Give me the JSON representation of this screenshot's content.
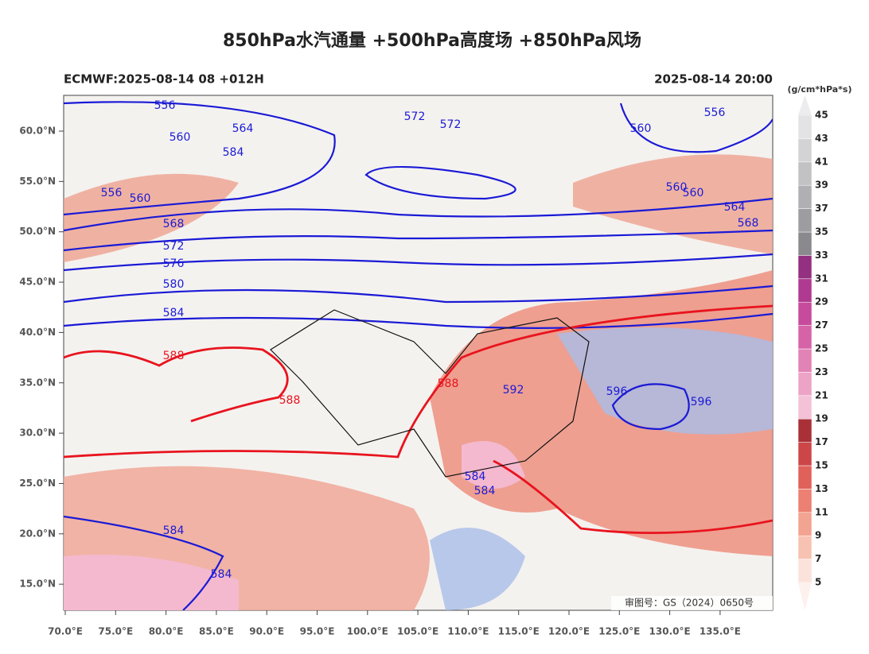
{
  "title": "850hPa水汽通量 +500hPa高度场 +850hPa风场",
  "subtitle_left": "ECMWF:2025-08-14 08 +012H",
  "subtitle_right": "2025-08-14 20:00",
  "colorbar": {
    "unit": "(g/cm*hPa*s)",
    "levels": [
      5,
      7,
      9,
      11,
      13,
      15,
      17,
      19,
      21,
      23,
      25,
      27,
      29,
      31,
      33,
      35,
      37,
      39,
      41,
      43,
      45
    ],
    "colors": [
      "#fbe3dc",
      "#f7c2b2",
      "#f3a391",
      "#ec8072",
      "#e0605a",
      "#cc4648",
      "#aa3038",
      "#f3c2d6",
      "#eca3c5",
      "#e283b6",
      "#d663a8",
      "#c64b9c",
      "#b03a90",
      "#93307f",
      "#8a8a8e",
      "#9d9da1",
      "#b0b0b4",
      "#c2c2c5",
      "#d3d3d6",
      "#e3e3e5"
    ]
  },
  "lon_ticks": [
    {
      "value": 70,
      "label": "70.0°E"
    },
    {
      "value": 75,
      "label": "75.0°E"
    },
    {
      "value": 80,
      "label": "80.0°E"
    },
    {
      "value": 85,
      "label": "85.0°E"
    },
    {
      "value": 90,
      "label": "90.0°E"
    },
    {
      "value": 95,
      "label": "95.0°E"
    },
    {
      "value": 100,
      "label": "100.0°E"
    },
    {
      "value": 105,
      "label": "105.0°E"
    },
    {
      "value": 110,
      "label": "110.0°E"
    },
    {
      "value": 115,
      "label": "115.0°E"
    },
    {
      "value": 120,
      "label": "120.0°E"
    },
    {
      "value": 125,
      "label": "125.0°E"
    },
    {
      "value": 130,
      "label": "130.0°E"
    },
    {
      "value": 135,
      "label": "135.0°E"
    }
  ],
  "lat_ticks": [
    {
      "value": 60,
      "label": "60.0°N"
    },
    {
      "value": 55,
      "label": "55.0°N"
    },
    {
      "value": 50,
      "label": "50.0°N"
    },
    {
      "value": 45,
      "label": "45.0°N"
    },
    {
      "value": 40,
      "label": "40.0°N"
    },
    {
      "value": 35,
      "label": "35.0°N"
    },
    {
      "value": 30,
      "label": "30.0°N"
    },
    {
      "value": 25,
      "label": "25.0°N"
    },
    {
      "value": 20,
      "label": "20.0°N"
    },
    {
      "value": 15,
      "label": "15.0°N"
    }
  ],
  "contour_labels": [
    {
      "text": "556",
      "color": "#1a1ad6"
    },
    {
      "text": "556",
      "color": "#1a1ad6"
    },
    {
      "text": "556",
      "color": "#1a1ad6"
    },
    {
      "text": "560",
      "color": "#1a1ad6"
    },
    {
      "text": "560",
      "color": "#1a1ad6"
    },
    {
      "text": "560",
      "color": "#1a1ad6"
    },
    {
      "text": "560",
      "color": "#1a1ad6"
    },
    {
      "text": "560",
      "color": "#1a1ad6"
    },
    {
      "text": "564",
      "color": "#1a1ad6"
    },
    {
      "text": "564",
      "color": "#1a1ad6"
    },
    {
      "text": "568",
      "color": "#1a1ad6"
    },
    {
      "text": "568",
      "color": "#1a1ad6"
    },
    {
      "text": "572",
      "color": "#1a1ad6"
    },
    {
      "text": "572",
      "color": "#1a1ad6"
    },
    {
      "text": "572",
      "color": "#1a1ad6"
    },
    {
      "text": "576",
      "color": "#1a1ad6"
    },
    {
      "text": "580",
      "color": "#1a1ad6"
    },
    {
      "text": "584",
      "color": "#1a1ad6"
    },
    {
      "text": "584",
      "color": "#1a1ad6"
    },
    {
      "text": "584",
      "color": "#1a1ad6"
    },
    {
      "text": "584",
      "color": "#1a1ad6"
    },
    {
      "text": "584",
      "color": "#1a1ad6"
    },
    {
      "text": "584",
      "color": "#1a1ad6"
    },
    {
      "text": "588",
      "color": "#e8141e"
    },
    {
      "text": "588",
      "color": "#e8141e"
    },
    {
      "text": "588",
      "color": "#e8141e"
    },
    {
      "text": "592",
      "color": "#1a1ad6"
    },
    {
      "text": "596",
      "color": "#1a1ad6"
    },
    {
      "text": "596",
      "color": "#1a1ad6"
    }
  ],
  "stamp": "审图号：GS（2024）0650号"
}
